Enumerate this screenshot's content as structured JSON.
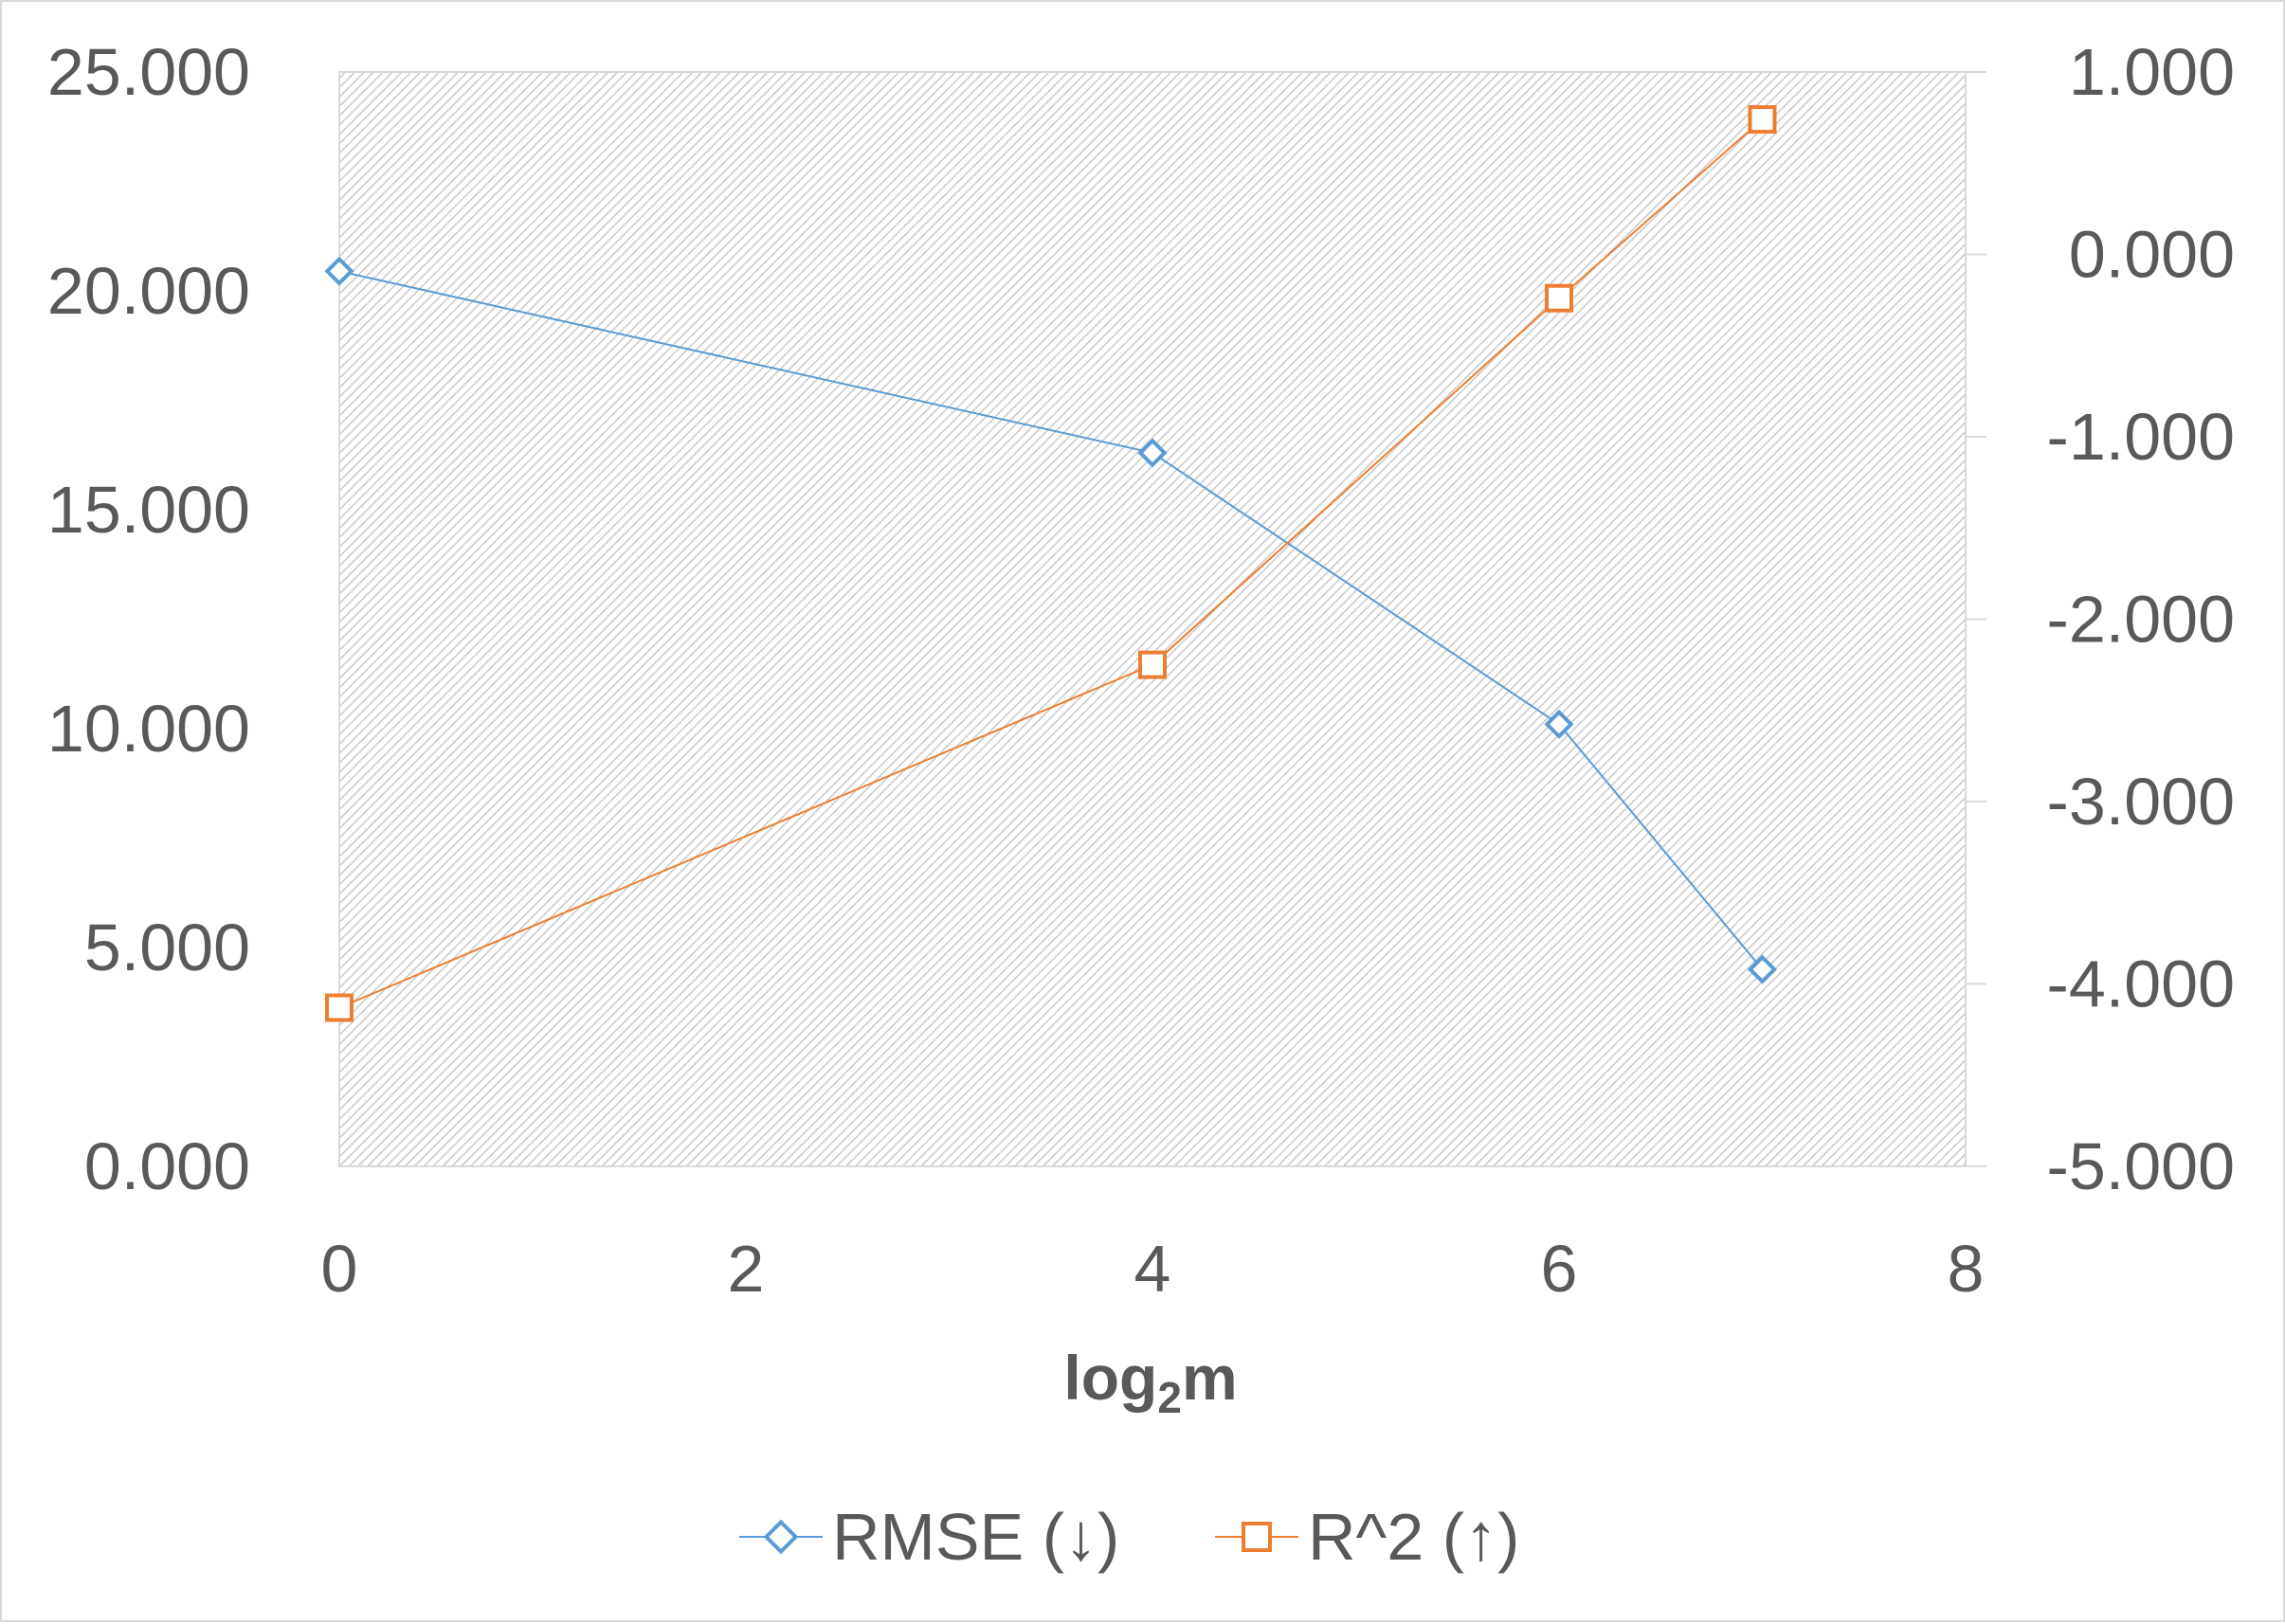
{
  "chart_data": {
    "type": "line",
    "title": "",
    "xlabel_main": "log",
    "xlabel_sub": "2",
    "xlabel_tail": "m",
    "xlim": [
      0,
      8
    ],
    "x_ticks": [
      "0",
      "2",
      "4",
      "6",
      "8"
    ],
    "ylim_left": [
      0,
      25
    ],
    "y_left_ticks": [
      "0.000",
      "5.000",
      "10.000",
      "15.000",
      "20.000",
      "25.000"
    ],
    "ylim_right": [
      -5,
      1
    ],
    "y_right_ticks": [
      "-5.000",
      "-4.000",
      "-3.000",
      "-2.000",
      "-1.000",
      "0.000",
      "1.000"
    ],
    "grid": false,
    "plot_background": "hatched light gray",
    "legend_position": "bottom",
    "series": [
      {
        "name": "RMSE (↓)",
        "axis": "left",
        "color": "#5b9bd5",
        "marker": "diamond",
        "x": [
          0,
          4,
          6,
          7
        ],
        "y": [
          20.45,
          16.3,
          10.1,
          4.5
        ]
      },
      {
        "name": "R^2 (↑)",
        "axis": "right",
        "color": "#ed7d31",
        "marker": "square",
        "x": [
          0,
          4,
          6,
          7
        ],
        "y": [
          -4.13,
          -2.25,
          -0.24,
          0.74
        ]
      }
    ]
  }
}
